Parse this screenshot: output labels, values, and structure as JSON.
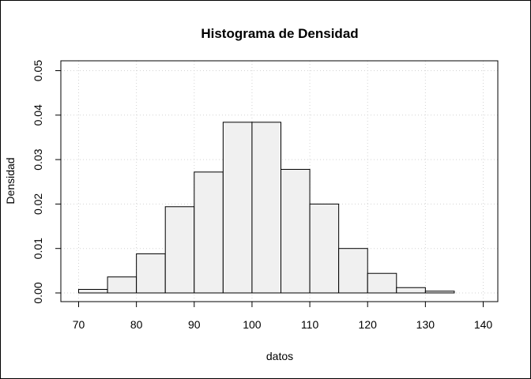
{
  "chart_data": {
    "type": "bar",
    "title": "Histograma de Densidad",
    "xlabel": "datos",
    "ylabel": "Densidad",
    "bin_edges": [
      70,
      75,
      80,
      85,
      90,
      95,
      100,
      105,
      110,
      115,
      120,
      125,
      130,
      135
    ],
    "values": [
      0.0008,
      0.0036,
      0.0088,
      0.0194,
      0.0272,
      0.0384,
      0.0384,
      0.0278,
      0.02,
      0.01,
      0.0044,
      0.0012,
      0.0004
    ],
    "xlim": [
      70,
      140
    ],
    "ylim": [
      0,
      0.05
    ],
    "x_ticks": [
      70,
      80,
      90,
      100,
      110,
      120,
      130,
      140
    ],
    "x_tick_labels": [
      "70",
      "80",
      "90",
      "100",
      "110",
      "120",
      "130",
      "140"
    ],
    "y_ticks": [
      0,
      0.01,
      0.02,
      0.03,
      0.04,
      0.05
    ],
    "y_tick_labels": [
      "0.00",
      "0.01",
      "0.02",
      "0.03",
      "0.04",
      "0.05"
    ],
    "grid": true,
    "bar_fill": "#f0f0f0",
    "bar_stroke": "#000000",
    "grid_color": "#d3d3d3"
  }
}
